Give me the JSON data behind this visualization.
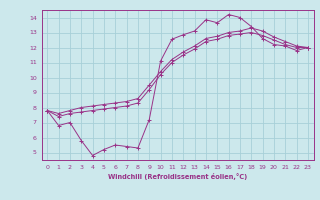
{
  "xlabel": "Windchill (Refroidissement éolien,°C)",
  "ylabel": "",
  "bg_color": "#cce8ec",
  "grid_color": "#a8d0d8",
  "line_color": "#993388",
  "xlim": [
    -0.5,
    23.5
  ],
  "ylim": [
    4.5,
    14.5
  ],
  "xticks": [
    0,
    1,
    2,
    3,
    4,
    5,
    6,
    7,
    8,
    9,
    10,
    11,
    12,
    13,
    14,
    15,
    16,
    17,
    18,
    19,
    20,
    21,
    22,
    23
  ],
  "yticks": [
    5,
    6,
    7,
    8,
    9,
    10,
    11,
    12,
    13,
    14
  ],
  "line1_x": [
    0,
    1,
    2,
    3,
    4,
    5,
    6,
    7,
    8,
    9,
    10,
    11,
    12,
    13,
    14,
    15,
    16,
    17,
    18,
    19,
    20,
    21,
    22,
    23
  ],
  "line1_y": [
    7.8,
    6.8,
    7.0,
    5.8,
    4.8,
    5.2,
    5.5,
    5.4,
    5.3,
    7.2,
    11.1,
    12.55,
    12.85,
    13.1,
    13.85,
    13.65,
    14.2,
    14.0,
    13.4,
    12.6,
    12.2,
    12.1,
    11.8,
    12.0
  ],
  "line2_x": [
    0,
    1,
    2,
    3,
    4,
    5,
    6,
    7,
    8,
    9,
    10,
    11,
    12,
    13,
    14,
    15,
    16,
    17,
    18,
    19,
    20,
    21,
    22,
    23
  ],
  "line2_y": [
    7.8,
    7.4,
    7.6,
    7.7,
    7.8,
    7.9,
    8.0,
    8.1,
    8.3,
    9.2,
    10.2,
    11.0,
    11.5,
    11.9,
    12.4,
    12.55,
    12.8,
    12.9,
    13.0,
    12.8,
    12.5,
    12.2,
    12.0,
    12.0
  ],
  "line3_x": [
    0,
    1,
    2,
    3,
    4,
    5,
    6,
    7,
    8,
    9,
    10,
    11,
    12,
    13,
    14,
    15,
    16,
    17,
    18,
    19,
    20,
    21,
    22,
    23
  ],
  "line3_y": [
    7.8,
    7.6,
    7.8,
    8.0,
    8.1,
    8.2,
    8.3,
    8.4,
    8.6,
    9.5,
    10.4,
    11.2,
    11.7,
    12.1,
    12.6,
    12.75,
    13.0,
    13.1,
    13.3,
    13.1,
    12.7,
    12.4,
    12.1,
    12.0
  ]
}
